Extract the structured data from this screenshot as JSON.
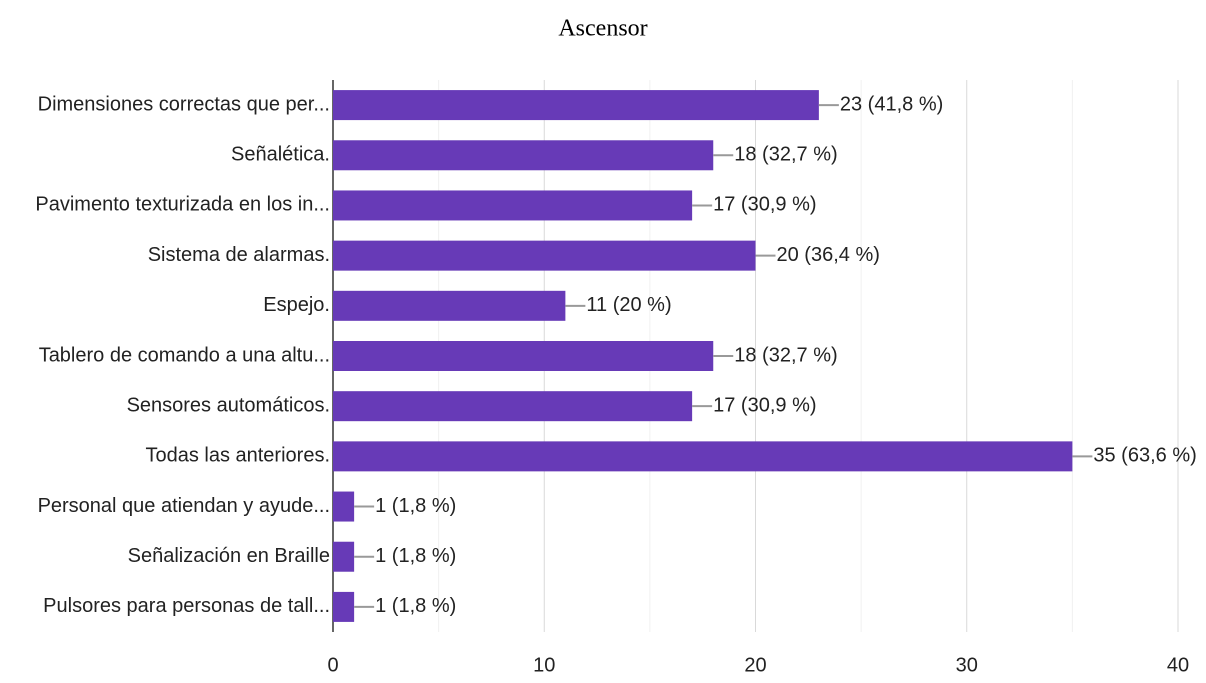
{
  "chart_data": {
    "type": "bar",
    "orientation": "horizontal",
    "title": "Ascensor",
    "categories": [
      "Dimensiones correctas que per...",
      "Señalética.",
      "Pavimento texturizada en los in...",
      "Sistema de alarmas.",
      "Espejo.",
      "Tablero de comando a una altu...",
      "Sensores automáticos.",
      "Todas las anteriores.",
      "Personal que atiendan y ayude...",
      "Señalización en Braille",
      "Pulsores para personas de tall..."
    ],
    "values": [
      23,
      18,
      17,
      20,
      11,
      18,
      17,
      35,
      1,
      1,
      1
    ],
    "value_labels": [
      "23 (41,8 %)",
      "18 (32,7 %)",
      "17 (30,9 %)",
      "20 (36,4 %)",
      "11 (20 %)",
      "18 (32,7 %)",
      "17 (30,9 %)",
      "35 (63,6 %)",
      "1 (1,8 %)",
      "1 (1,8 %)",
      "1 (1,8 %)"
    ],
    "color": "#673ab7",
    "xlim": [
      0,
      40
    ],
    "xticks": [
      0,
      10,
      20,
      30,
      40
    ],
    "xminor_ticks": [
      5,
      15,
      25,
      35
    ],
    "grid": true
  }
}
